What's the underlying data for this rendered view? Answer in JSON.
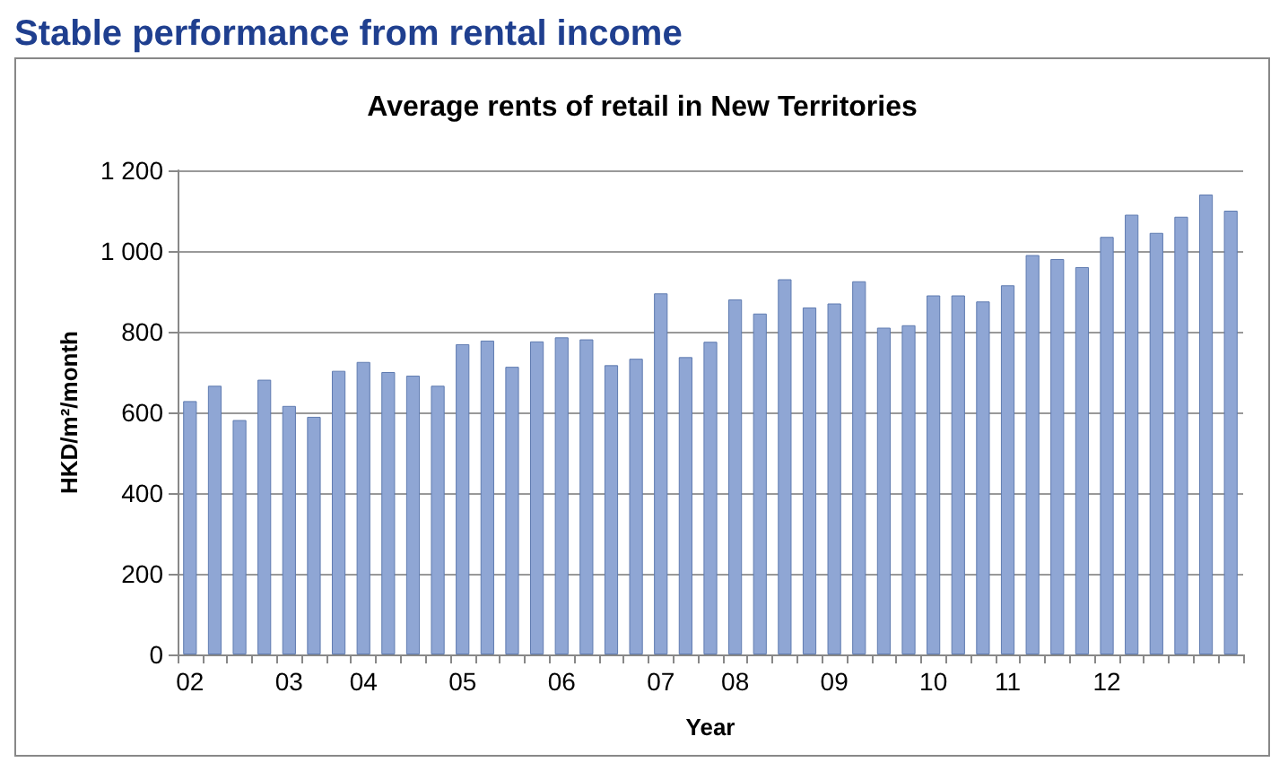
{
  "chart_data": {
    "type": "bar",
    "title": "Stable performance from rental income",
    "subtitle": "Average rents of retail in New Territories",
    "xlabel": "Year",
    "ylabel": "HKD/m²/month",
    "categories": [
      "02",
      null,
      null,
      null,
      "03",
      null,
      null,
      "04",
      null,
      null,
      null,
      "05",
      null,
      null,
      null,
      "06",
      null,
      null,
      null,
      "07",
      null,
      null,
      "08",
      null,
      null,
      null,
      "09",
      null,
      null,
      null,
      "10",
      null,
      null,
      "11",
      null,
      null,
      null,
      "12",
      null,
      null,
      null,
      null,
      null
    ],
    "values": [
      628,
      666,
      581,
      681,
      616,
      589,
      703,
      725,
      700,
      691,
      666,
      769,
      778,
      713,
      776,
      786,
      781,
      717,
      733,
      895,
      737,
      775,
      880,
      845,
      930,
      860,
      870,
      925,
      810,
      816,
      890,
      890,
      875,
      915,
      990,
      980,
      960,
      1035,
      1090,
      1045,
      1085,
      1140,
      1100
    ],
    "color": "#8fa6d4",
    "ylim": [
      0,
      1200
    ],
    "yticks": [
      0,
      200,
      400,
      600,
      800,
      {
        "value": 1000,
        "label": "1 000"
      },
      {
        "value": 1200,
        "label": "1 200"
      }
    ],
    "grid": "y"
  }
}
